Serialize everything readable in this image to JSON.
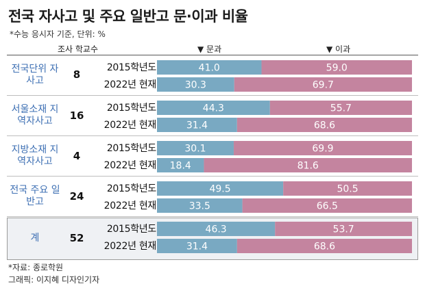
{
  "title": "전국 자사고 및 주요 일반고 문·이과 비율",
  "subtitle": "*수능 응시자 기준, 단위: %",
  "headers": {
    "count": "조사 학교수",
    "liberal": "▼ 문과",
    "science": "▼ 이과"
  },
  "colors": {
    "liberal": "#79a9c2",
    "science": "#c4849f",
    "group_text": "#3d6fb3"
  },
  "groups": [
    {
      "label": "전국단위 자사고",
      "count": "8"
    },
    {
      "label": "서울소재 지역자사고",
      "count": "16"
    },
    {
      "label": "지방소재 지역자사고",
      "count": "4"
    },
    {
      "label": "전국 주요 일반고",
      "count": "24"
    },
    {
      "label": "계",
      "count": "52"
    }
  ],
  "chart_data": {
    "type": "bar",
    "stacked": true,
    "orientation": "horizontal",
    "xlim": [
      0,
      100
    ],
    "categories": [
      "2015학년도",
      "2022년 현재",
      "2015학년도",
      "2022년 현재",
      "2015학년도",
      "2022년 현재",
      "2015학년도",
      "2022년 현재",
      "2015학년도",
      "2022년 현재"
    ],
    "series": [
      {
        "name": "문과",
        "values": [
          41.0,
          30.3,
          44.3,
          31.4,
          30.1,
          18.4,
          49.5,
          33.5,
          46.3,
          31.4
        ],
        "labels": [
          "41.0",
          "30.3",
          "44.3",
          "31.4",
          "30.1",
          "18.4",
          "49.5",
          "33.5",
          "46.3",
          "31.4"
        ]
      },
      {
        "name": "이과",
        "values": [
          59.0,
          69.7,
          55.7,
          68.6,
          69.9,
          81.6,
          50.5,
          66.5,
          53.7,
          68.6
        ],
        "labels": [
          "59.0",
          "69.7",
          "55.7",
          "68.6",
          "69.9",
          "81.6",
          "50.5",
          "66.5",
          "53.7",
          "68.6"
        ]
      }
    ]
  },
  "footer": {
    "source": "*자료: 종로학원",
    "credit": "그래픽: 이지혜 디자인기자"
  }
}
